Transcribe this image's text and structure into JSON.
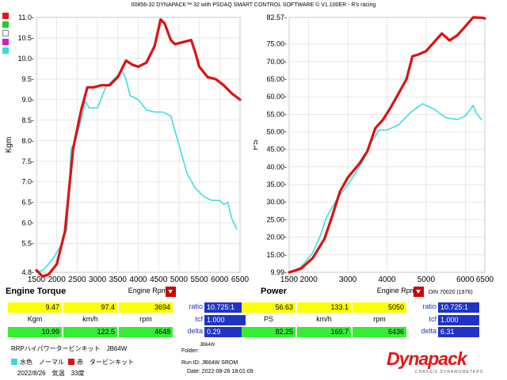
{
  "header": {
    "title": "00856-32 DYNAPACK™ 32 with PSDAQ SMART CONTROL SOFTWARE © V1.100ER - R's racing"
  },
  "colors": {
    "stock": "#33dddd",
    "turbo": "#dd1111",
    "pass_yellow": "#ffff00",
    "pass_green": "#33ee33",
    "ratio_blue": "#1f33c8",
    "brand_red": "#e01818"
  },
  "icons": {
    "legend_top": "color-swatch-stack",
    "rpm_button": "down-triangle-icon"
  },
  "chart_data": [
    {
      "type": "line",
      "title": "Engine Torque",
      "xlabel": "Engine Rpm",
      "ylabel": "Kgm",
      "xlim": [
        1500,
        6500
      ],
      "ylim": [
        4.8,
        11.0
      ],
      "xticks": [
        "1500",
        "2000",
        "2500",
        "3000",
        "3500",
        "4000",
        "4500",
        "5000",
        "5500",
        "6000",
        "6500"
      ],
      "yticks": [
        "4.8",
        "5.5",
        "6.0",
        "6.5",
        "7.0",
        "7.5",
        "8.0",
        "8.5",
        "9.0",
        "9.5",
        "10.0",
        "10.5",
        "11.0"
      ],
      "grid": true,
      "series": [
        {
          "name": "水色 ノーマル",
          "color": "#33dddd",
          "x": [
            1500,
            1650,
            1800,
            1950,
            2100,
            2250,
            2350,
            2450,
            2600,
            2700,
            2800,
            3000,
            3200,
            3400,
            3600,
            3700,
            3800,
            4000,
            4200,
            4400,
            4600,
            4800,
            5000,
            5200,
            5400,
            5600,
            5800,
            6000,
            6100,
            6200,
            6300,
            6420
          ],
          "y": [
            4.8,
            4.85,
            5.0,
            5.2,
            5.45,
            5.85,
            7.8,
            8.0,
            8.5,
            8.95,
            8.8,
            8.8,
            9.3,
            9.5,
            9.7,
            9.5,
            9.1,
            9.0,
            8.75,
            8.7,
            8.7,
            8.6,
            7.9,
            7.2,
            6.85,
            6.65,
            6.55,
            6.55,
            6.45,
            6.5,
            6.1,
            5.85
          ]
        },
        {
          "name": "赤 タービンキット",
          "color": "#dd1111",
          "x": [
            1500,
            1650,
            1800,
            2000,
            2200,
            2400,
            2600,
            2750,
            2900,
            3100,
            3300,
            3500,
            3600,
            3700,
            3850,
            4000,
            4200,
            4400,
            4550,
            4650,
            4800,
            4900,
            5100,
            5300,
            5400,
            5500,
            5700,
            5900,
            6100,
            6300,
            6500
          ],
          "y": [
            4.85,
            4.7,
            4.75,
            5.0,
            5.8,
            7.8,
            8.75,
            9.3,
            9.3,
            9.35,
            9.35,
            9.55,
            9.75,
            9.95,
            9.85,
            9.8,
            9.9,
            10.3,
            10.95,
            10.85,
            10.45,
            10.35,
            10.4,
            10.45,
            10.15,
            9.8,
            9.55,
            9.5,
            9.35,
            9.15,
            9.0
          ]
        }
      ]
    },
    {
      "type": "line",
      "title": "Power",
      "xlabel": "Engine Rpm",
      "ylabel": "PS",
      "xlim": [
        1500,
        6500
      ],
      "ylim": [
        9.99,
        82.57
      ],
      "xticks": [
        "1500",
        "2000",
        "3000",
        "4000",
        "5000",
        "6000",
        "6500"
      ],
      "yticks": [
        "9.99",
        "15.00",
        "20.00",
        "25.00",
        "30.00",
        "35.00",
        "40.00",
        "45.00",
        "50.00",
        "55.00",
        "60.00",
        "65.00",
        "70.00",
        "75.00",
        "82.57"
      ],
      "grid": true,
      "series": [
        {
          "name": "水色 ノーマル",
          "color": "#33dddd",
          "x": [
            1500,
            1800,
            2100,
            2300,
            2450,
            2700,
            2900,
            3100,
            3400,
            3600,
            3800,
            4000,
            4300,
            4600,
            4900,
            5200,
            5500,
            5800,
            6000,
            6200,
            6300,
            6420
          ],
          "y": [
            9.99,
            11.5,
            15.5,
            20.5,
            25.5,
            30.5,
            33.5,
            36.5,
            42.0,
            47.0,
            50.5,
            50.5,
            52.0,
            55.5,
            58.0,
            56.5,
            54.0,
            53.5,
            54.5,
            57.5,
            55.0,
            53.5
          ]
        },
        {
          "name": "赤 タービンキット",
          "color": "#dd1111",
          "x": [
            1500,
            1800,
            2100,
            2400,
            2600,
            2800,
            3000,
            3300,
            3500,
            3700,
            3900,
            4100,
            4300,
            4500,
            4650,
            4800,
            5000,
            5200,
            5400,
            5600,
            5800,
            6000,
            6200,
            6400,
            6500
          ],
          "y": [
            10.0,
            11.0,
            14.0,
            19.5,
            26.0,
            33.0,
            37.0,
            41.0,
            44.5,
            51.0,
            53.5,
            57.0,
            61.0,
            65.0,
            71.5,
            72.0,
            73.0,
            75.5,
            78.0,
            76.0,
            77.5,
            80.0,
            82.57,
            82.5,
            82.3
          ]
        }
      ]
    }
  ],
  "stats_left": {
    "row1": [
      "9.47",
      "97.4",
      "3694"
    ],
    "units": [
      "Kgm",
      "km/h",
      "rpm"
    ],
    "row2": [
      "10.99",
      "122.5",
      "4648"
    ]
  },
  "stats_right": {
    "row1": [
      "56.63",
      "133.1",
      "5050"
    ],
    "units": [
      "PS",
      "km/h",
      "rpm"
    ],
    "row2": [
      "82.25",
      "169.7",
      "6436"
    ]
  },
  "ratio_left": {
    "labels": [
      "ratio",
      "tcf",
      "delta"
    ],
    "values": [
      "10.725:1",
      "1.000",
      "0.29"
    ]
  },
  "ratio_right": {
    "labels": [
      "ratio",
      "tcf",
      "delta"
    ],
    "values": [
      "10.725:1",
      "1.000",
      "6.31"
    ]
  },
  "din": "DIN 70020 (1976)",
  "folder": {
    "label": "Folder:",
    "value": "JB64W"
  },
  "run_id": "Run ID: JB64W SROM",
  "date": "Date: 2022-08-26 18:01:09",
  "vehicle": "RRPハイパワータービンキット　JB64W",
  "legend": {
    "stock_label": "水色　ノーマル",
    "turbo_label": "赤　タービンキット"
  },
  "conditions": "2022/8/26　気温　33度",
  "brand": {
    "logo": "Dynapack",
    "tagline": "CHASSIS DYNAMOMETERS"
  }
}
